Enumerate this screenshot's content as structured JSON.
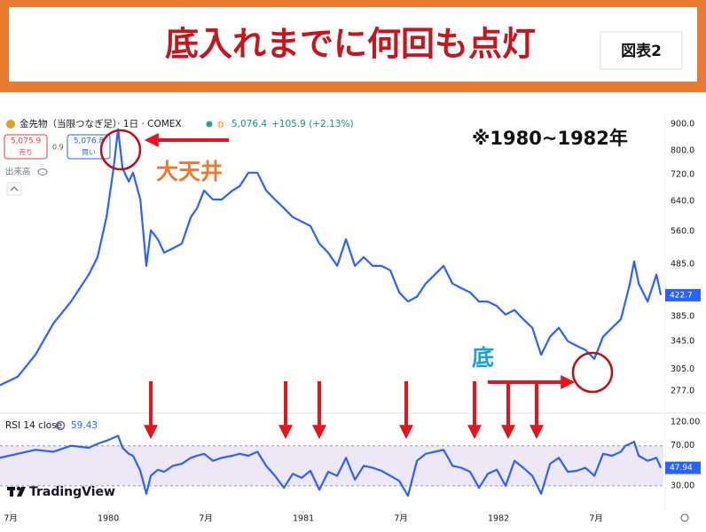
{
  "header": {
    "title": "底入れまでに何回も点灯",
    "badge": "図表2"
  },
  "toolbar": {
    "symbol": "金先物（当限つなぎ足）· 1日 · COMEX",
    "price": "5,076.4",
    "change": "+105.9 (+2.13%)",
    "sell_price": "5,075.9",
    "sell_label": "売り",
    "spread": "0.9",
    "buy_price": "5,076.8",
    "buy_label": "買い",
    "volume_label": "出来高"
  },
  "annotations": {
    "range": "※1980~1982年",
    "peak": "大天井",
    "bottom": "底"
  },
  "logo": "TradingView",
  "chart_data": [
    {
      "type": "line",
      "log_scale": true,
      "color": "#2962ff",
      "xlim": [
        1979.445,
        1982.845
      ],
      "ylim": [
        255,
        943
      ],
      "yticks": [
        {
          "value": 900,
          "label": "900.0"
        },
        {
          "value": 800,
          "label": "800.0"
        },
        {
          "value": 720,
          "label": "720.0"
        },
        {
          "value": 640,
          "label": "640.0"
        },
        {
          "value": 560,
          "label": "560.0"
        },
        {
          "value": 485,
          "label": "485.0"
        },
        {
          "value": 385,
          "label": "385.0"
        },
        {
          "value": 345,
          "label": "345.0"
        },
        {
          "value": 305,
          "label": "305.0"
        },
        {
          "value": 277,
          "label": "277.0"
        }
      ],
      "last_value": 422.7,
      "x": [
        1979.445,
        1979.536,
        1979.627,
        1979.718,
        1979.809,
        1979.9,
        1979.945,
        1979.991,
        1980.027,
        1980.05,
        1980.073,
        1980.105,
        1980.127,
        1980.164,
        1980.195,
        1980.218,
        1980.254,
        1980.286,
        1980.332,
        1980.377,
        1980.423,
        1980.455,
        1980.491,
        1980.536,
        1980.582,
        1980.636,
        1980.673,
        1980.718,
        1980.764,
        1980.809,
        1980.854,
        1980.9,
        1980.945,
        1980.991,
        1981.036,
        1981.082,
        1981.127,
        1981.173,
        1981.218,
        1981.264,
        1981.309,
        1981.355,
        1981.4,
        1981.445,
        1981.491,
        1981.536,
        1981.582,
        1981.627,
        1981.673,
        1981.718,
        1981.764,
        1981.809,
        1981.854,
        1981.9,
        1981.945,
        1981.991,
        1982.036,
        1982.082,
        1982.127,
        1982.173,
        1982.218,
        1982.264,
        1982.309,
        1982.355,
        1982.4,
        1982.445,
        1982.491,
        1982.536,
        1982.582,
        1982.627,
        1982.65,
        1982.673,
        1982.695,
        1982.718,
        1982.764,
        1982.809,
        1982.832
      ],
      "values": [
        284,
        295,
        325,
        373,
        411,
        463,
        500,
        597,
        740,
        880,
        740,
        698,
        726,
        645,
        481,
        563,
        541,
        510,
        520,
        531,
        597,
        621,
        671,
        645,
        645,
        671,
        684,
        726,
        726,
        671,
        645,
        621,
        597,
        585,
        574,
        531,
        510,
        481,
        541,
        481,
        500,
        481,
        481,
        472,
        428,
        411,
        420,
        445,
        463,
        481,
        445,
        436,
        428,
        411,
        411,
        403,
        388,
        396,
        380,
        366,
        325,
        352,
        366,
        345,
        338,
        332,
        319,
        352,
        366,
        380,
        411,
        445,
        491,
        445,
        411,
        463,
        423
      ]
    },
    {
      "type": "line",
      "title": "RSI 14 close",
      "color": "#2962ff",
      "band_color": "#ede7f6",
      "xlim": [
        1979.445,
        1982.845
      ],
      "ylim": [
        6,
        99
      ],
      "yticks": [
        {
          "value": 70,
          "label": "70.00"
        },
        {
          "value": 30,
          "label": "30.00"
        }
      ],
      "pane_top_label": "120.00",
      "header_value": "59.43",
      "last_value": 47.94,
      "xticks": [
        {
          "value": 1979.5,
          "label": "7月"
        },
        1980,
        {
          "value": 1980.5,
          "label": "7月"
        },
        1981,
        {
          "value": 1981.5,
          "label": "7月"
        },
        1982,
        {
          "value": 1982.5,
          "label": "7月"
        }
      ],
      "x": [
        1979.445,
        1979.536,
        1979.627,
        1979.718,
        1979.809,
        1979.9,
        1979.945,
        1979.991,
        1980.027,
        1980.05,
        1980.073,
        1980.105,
        1980.127,
        1980.164,
        1980.195,
        1980.218,
        1980.254,
        1980.286,
        1980.332,
        1980.377,
        1980.423,
        1980.455,
        1980.491,
        1980.536,
        1980.582,
        1980.636,
        1980.673,
        1980.718,
        1980.764,
        1980.809,
        1980.854,
        1980.9,
        1980.945,
        1980.991,
        1981.036,
        1981.082,
        1981.127,
        1981.173,
        1981.218,
        1981.264,
        1981.309,
        1981.355,
        1981.4,
        1981.445,
        1981.491,
        1981.536,
        1981.582,
        1981.627,
        1981.673,
        1981.718,
        1981.764,
        1981.809,
        1981.854,
        1981.9,
        1981.945,
        1981.991,
        1982.036,
        1982.082,
        1982.127,
        1982.173,
        1982.218,
        1982.264,
        1982.309,
        1982.355,
        1982.4,
        1982.445,
        1982.491,
        1982.536,
        1982.582,
        1982.627,
        1982.65,
        1982.673,
        1982.695,
        1982.718,
        1982.764,
        1982.809,
        1982.832
      ],
      "values": [
        58,
        62,
        66,
        64,
        70,
        68,
        72,
        75,
        78,
        80,
        68,
        62,
        60,
        45,
        22,
        40,
        46,
        44,
        50,
        52,
        58,
        60,
        62,
        55,
        58,
        60,
        62,
        60,
        64,
        50,
        40,
        28,
        42,
        38,
        45,
        26,
        44,
        40,
        58,
        36,
        50,
        48,
        45,
        40,
        35,
        20,
        55,
        62,
        64,
        66,
        50,
        48,
        44,
        28,
        42,
        46,
        30,
        55,
        48,
        40,
        22,
        52,
        58,
        44,
        45,
        48,
        40,
        62,
        60,
        64,
        70,
        72,
        74,
        60,
        55,
        58,
        48
      ]
    }
  ]
}
